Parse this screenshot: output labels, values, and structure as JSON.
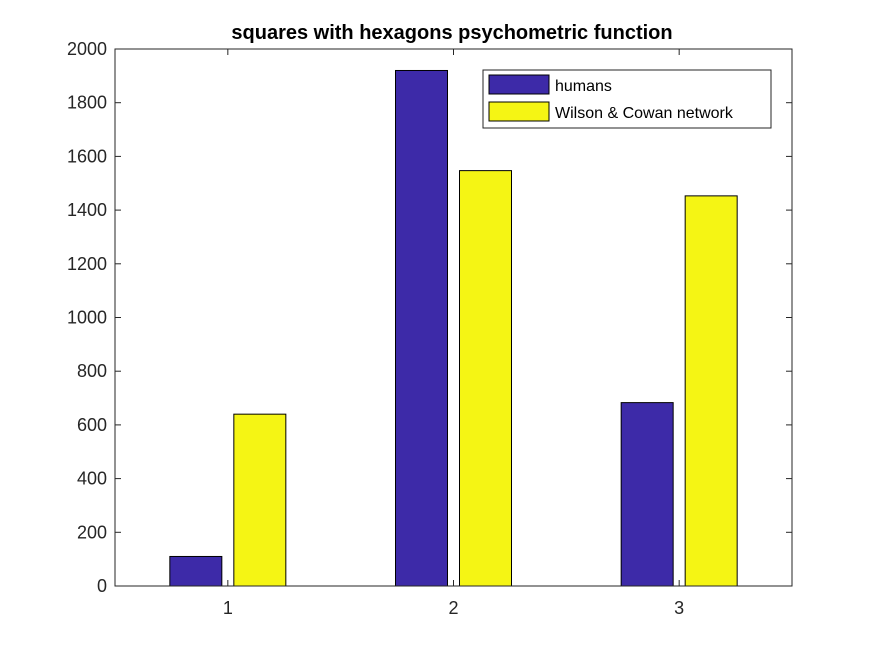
{
  "chart_data": {
    "type": "bar",
    "title": "squares with hexagons psychometric function",
    "xlabel": "",
    "ylabel": "",
    "categories": [
      "1",
      "2",
      "3"
    ],
    "series": [
      {
        "name": "humans",
        "color": "#3d2aa8",
        "values": [
          110,
          1920,
          683
        ]
      },
      {
        "name": "Wilson & Cowan network",
        "color": "#f5f514",
        "values": [
          640,
          1547,
          1453
        ]
      }
    ],
    "ylim": [
      0,
      2000
    ],
    "yticks": [
      0,
      200,
      400,
      600,
      800,
      1000,
      1200,
      1400,
      1600,
      1800,
      2000
    ],
    "grid": false,
    "legend_position": "top-right"
  }
}
